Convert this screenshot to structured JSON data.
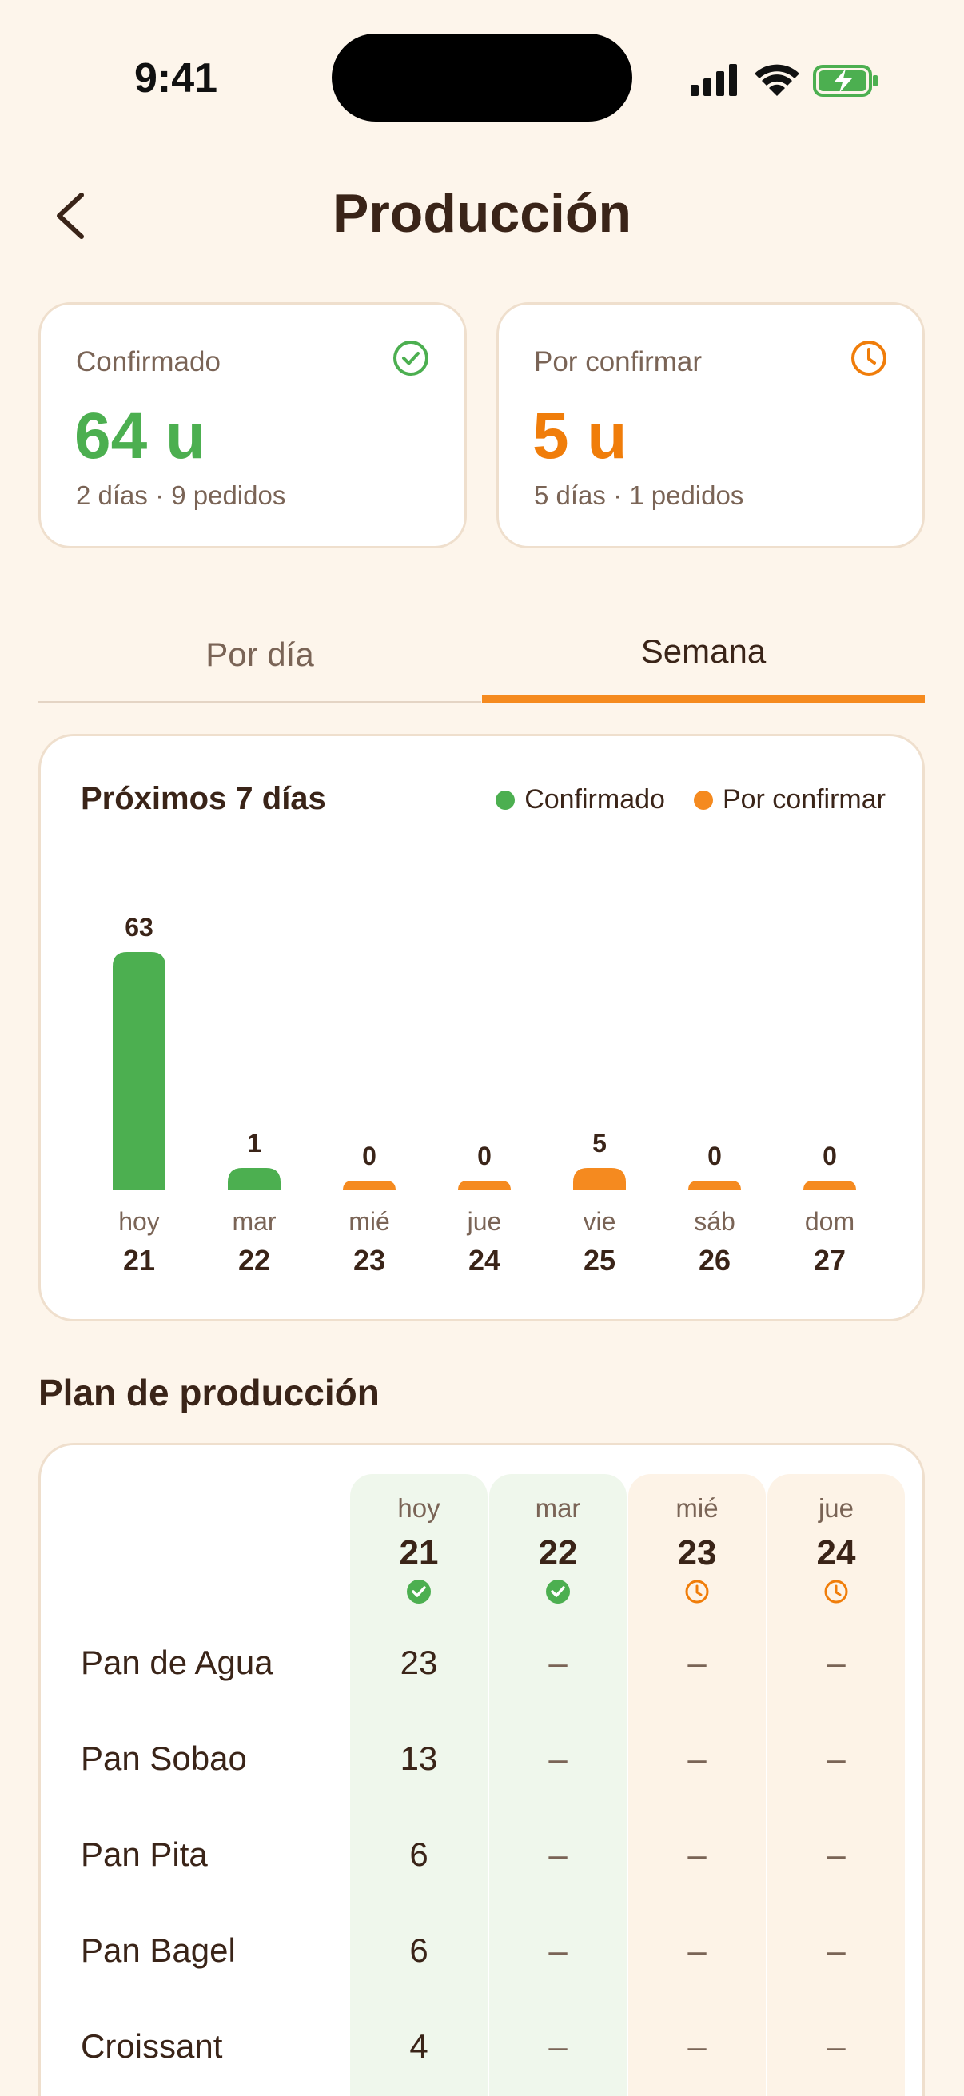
{
  "status_bar": {
    "time": "9:41"
  },
  "header": {
    "title": "Producción"
  },
  "summary": {
    "confirmed": {
      "label": "Confirmado",
      "value": "64 u",
      "sub": "2 días · 9 pedidos",
      "color": "#4caf50",
      "icon": "check-circle-icon"
    },
    "pending": {
      "label": "Por confirmar",
      "value": "5 u",
      "sub": "5 días · 1 pedidos",
      "color": "#f07d0a",
      "icon": "clock-icon"
    }
  },
  "tabs": [
    {
      "label": "Por día",
      "active": false
    },
    {
      "label": "Semana",
      "active": true
    }
  ],
  "chart_card": {
    "title": "Próximos 7 días",
    "legend": [
      {
        "label": "Confirmado",
        "color": "#4caf50"
      },
      {
        "label": "Por confirmar",
        "color": "#f58a1f"
      }
    ]
  },
  "chart_data": {
    "type": "bar",
    "title": "Próximos 7 días",
    "categories": [
      "hoy 21",
      "mar 22",
      "mié 23",
      "jue 24",
      "vie 25",
      "sáb 26",
      "dom 27"
    ],
    "day_names": [
      "hoy",
      "mar",
      "mié",
      "jue",
      "vie",
      "sáb",
      "dom"
    ],
    "day_numbers": [
      "21",
      "22",
      "23",
      "24",
      "25",
      "26",
      "27"
    ],
    "values": [
      63,
      1,
      0,
      0,
      5,
      0,
      0
    ],
    "status": [
      "Confirmado",
      "Confirmado",
      "Por confirmar",
      "Por confirmar",
      "Por confirmar",
      "Por confirmar",
      "Por confirmar"
    ],
    "colors": {
      "Confirmado": "#4caf50",
      "Por confirmar": "#f58a1f"
    },
    "legend_position": "top-right",
    "grid": false
  },
  "plan": {
    "title": "Plan de producción",
    "columns": [
      {
        "day": "hoy",
        "date": "21",
        "status": "confirmed"
      },
      {
        "day": "mar",
        "date": "22",
        "status": "confirmed"
      },
      {
        "day": "mié",
        "date": "23",
        "status": "pending"
      },
      {
        "day": "jue",
        "date": "24",
        "status": "pending"
      }
    ],
    "rows": [
      {
        "product": "Pan de Agua",
        "values": [
          "23",
          "–",
          "–",
          "–"
        ]
      },
      {
        "product": "Pan Sobao",
        "values": [
          "13",
          "–",
          "–",
          "–"
        ]
      },
      {
        "product": "Pan Pita",
        "values": [
          "6",
          "–",
          "–",
          "–"
        ]
      },
      {
        "product": "Pan Bagel",
        "values": [
          "6",
          "–",
          "–",
          "–"
        ]
      },
      {
        "product": "Croissant",
        "values": [
          "4",
          "–",
          "–",
          "–"
        ]
      }
    ]
  }
}
